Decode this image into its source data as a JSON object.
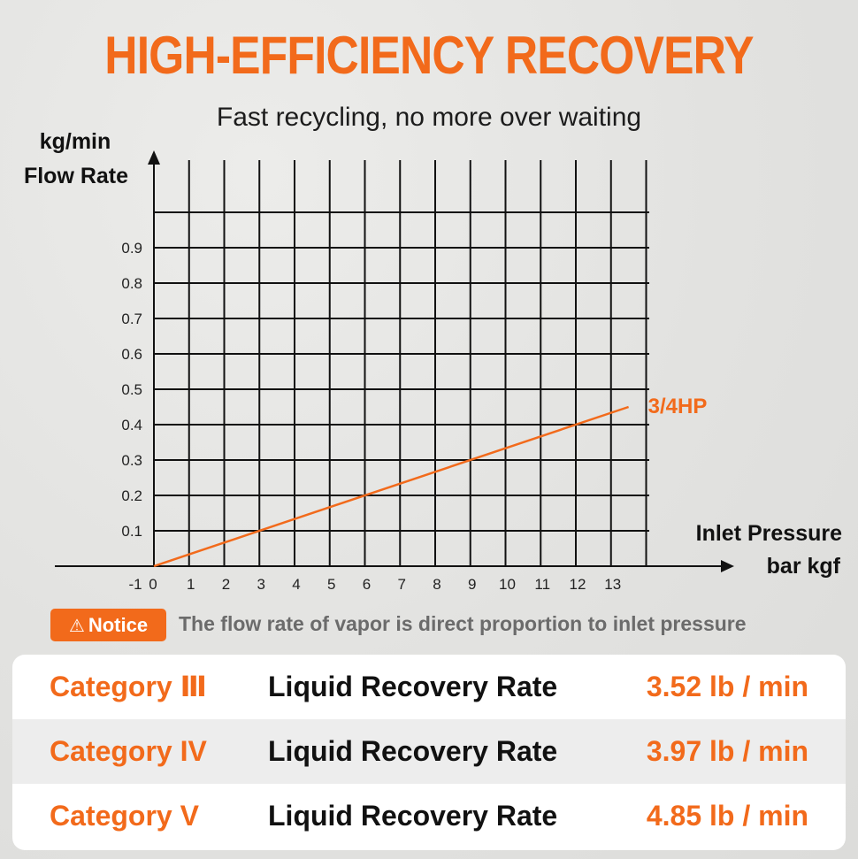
{
  "header": {
    "title": "HIGH-EFFICIENCY RECOVERY",
    "subtitle": "Fast recycling, no more over waiting"
  },
  "chart_data": {
    "type": "line",
    "y_unit": "kg/min",
    "ylabel": "Flow Rate",
    "xlabel": "Inlet Pressure",
    "x_unit": "bar kgf",
    "x_ticks": [
      "-1",
      "0",
      "1",
      "2",
      "3",
      "4",
      "5",
      "6",
      "7",
      "8",
      "9",
      "10",
      "11",
      "12",
      "13"
    ],
    "y_ticks": [
      "0.1",
      "0.2",
      "0.3",
      "0.4",
      "0.5",
      "0.6",
      "0.7",
      "0.8",
      "0.9"
    ],
    "xlim": [
      -1,
      13
    ],
    "ylim": [
      0,
      1.0
    ],
    "grid": true,
    "series": [
      {
        "name": "3/4HP",
        "color": "#f26a1b",
        "x": [
          0,
          13.5
        ],
        "y": [
          0,
          0.45
        ]
      }
    ]
  },
  "notice": {
    "icon": "warning-triangle-icon",
    "badge_label": "Notice",
    "text": "The flow rate of vapor is direct proportion to inlet pressure"
  },
  "table": {
    "rows": [
      {
        "category": "Category Ⅲ",
        "label": "Liquid Recovery Rate",
        "value": "3.52 lb / min"
      },
      {
        "category": "Category IV",
        "label": "Liquid Recovery Rate",
        "value": "3.97 lb / min"
      },
      {
        "category": "Category V",
        "label": "Liquid Recovery Rate",
        "value": "4.85 lb / min"
      }
    ]
  },
  "colors": {
    "accent": "#f26a1b",
    "text": "#111111",
    "muted": "#6b6b6b"
  }
}
